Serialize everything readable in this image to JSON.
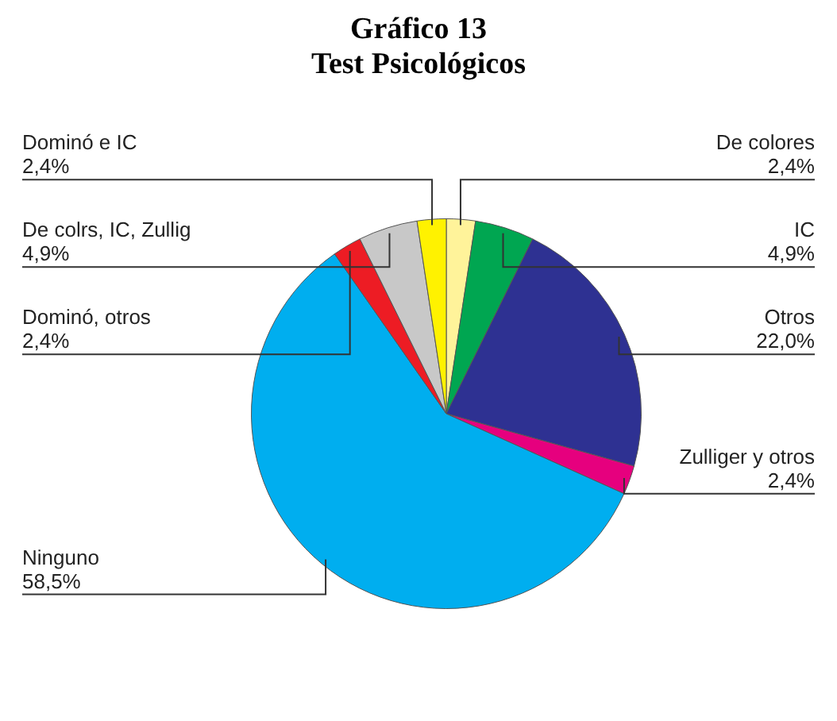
{
  "chart_data": {
    "type": "pie",
    "title": "Gráfico 13\nTest Psicológicos",
    "categories": [
      "De colores",
      "IC",
      "Otros",
      "Zulliger y otros",
      "Ninguno",
      "Dominó, otros",
      "De colrs, IC, Zullig",
      "Dominó e IC"
    ],
    "values": [
      2.4,
      4.9,
      22.0,
      2.4,
      58.5,
      2.4,
      4.9,
      2.4
    ],
    "value_labels": [
      "2,4%",
      "4,9%",
      "22,0%",
      "2,4%",
      "58,5%",
      "2,4%",
      "4,9%",
      "2,4%"
    ],
    "colors": [
      "#fff39a",
      "#00a651",
      "#2e3192",
      "#e6007e",
      "#00aeef",
      "#ed1c24",
      "#c8c8c8",
      "#fff200"
    ],
    "legend": false
  }
}
